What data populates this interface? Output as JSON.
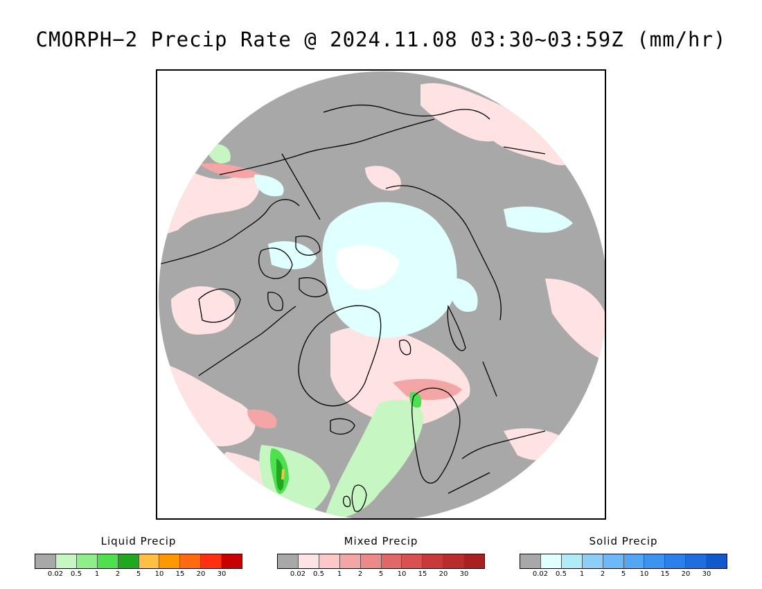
{
  "title": "CMORPH−2 Precip Rate @ 2024.11.08 03:30~03:59Z (mm/hr)",
  "map": {
    "projection": "north-polar-stereographic",
    "colors": {
      "no_precip": "#a8a8a8",
      "frame": "#000000",
      "coast": "#000000"
    }
  },
  "legends": [
    {
      "title": "Liquid Precip",
      "colors": [
        "#a8a8a8",
        "#c6f6c2",
        "#8fee8a",
        "#4ee04e",
        "#20a820",
        "#ffbf40",
        "#ff9800",
        "#ff6a10",
        "#ff3010",
        "#c80000"
      ],
      "ticks": [
        "0.02",
        "0.5",
        "1",
        "2",
        "5",
        "10",
        "15",
        "20",
        "30"
      ]
    },
    {
      "title": "Mixed Precip",
      "colors": [
        "#a8a8a8",
        "#ffe2e2",
        "#ffc8c8",
        "#f4a6a6",
        "#ec8a8a",
        "#e06868",
        "#d85050",
        "#c83a3a",
        "#b82c2c",
        "#a82020"
      ],
      "ticks": [
        "0.02",
        "0.5",
        "1",
        "2",
        "5",
        "10",
        "15",
        "20",
        "30"
      ]
    },
    {
      "title": "Solid Precip",
      "colors": [
        "#a8a8a8",
        "#e0ffff",
        "#b0ecf8",
        "#8ccef8",
        "#6cb8f8",
        "#52a6f4",
        "#3c94f0",
        "#2c80ec",
        "#1e6ee0",
        "#1058cc"
      ],
      "ticks": [
        "0.02",
        "0.5",
        "1",
        "2",
        "5",
        "10",
        "15",
        "20",
        "30"
      ]
    }
  ]
}
